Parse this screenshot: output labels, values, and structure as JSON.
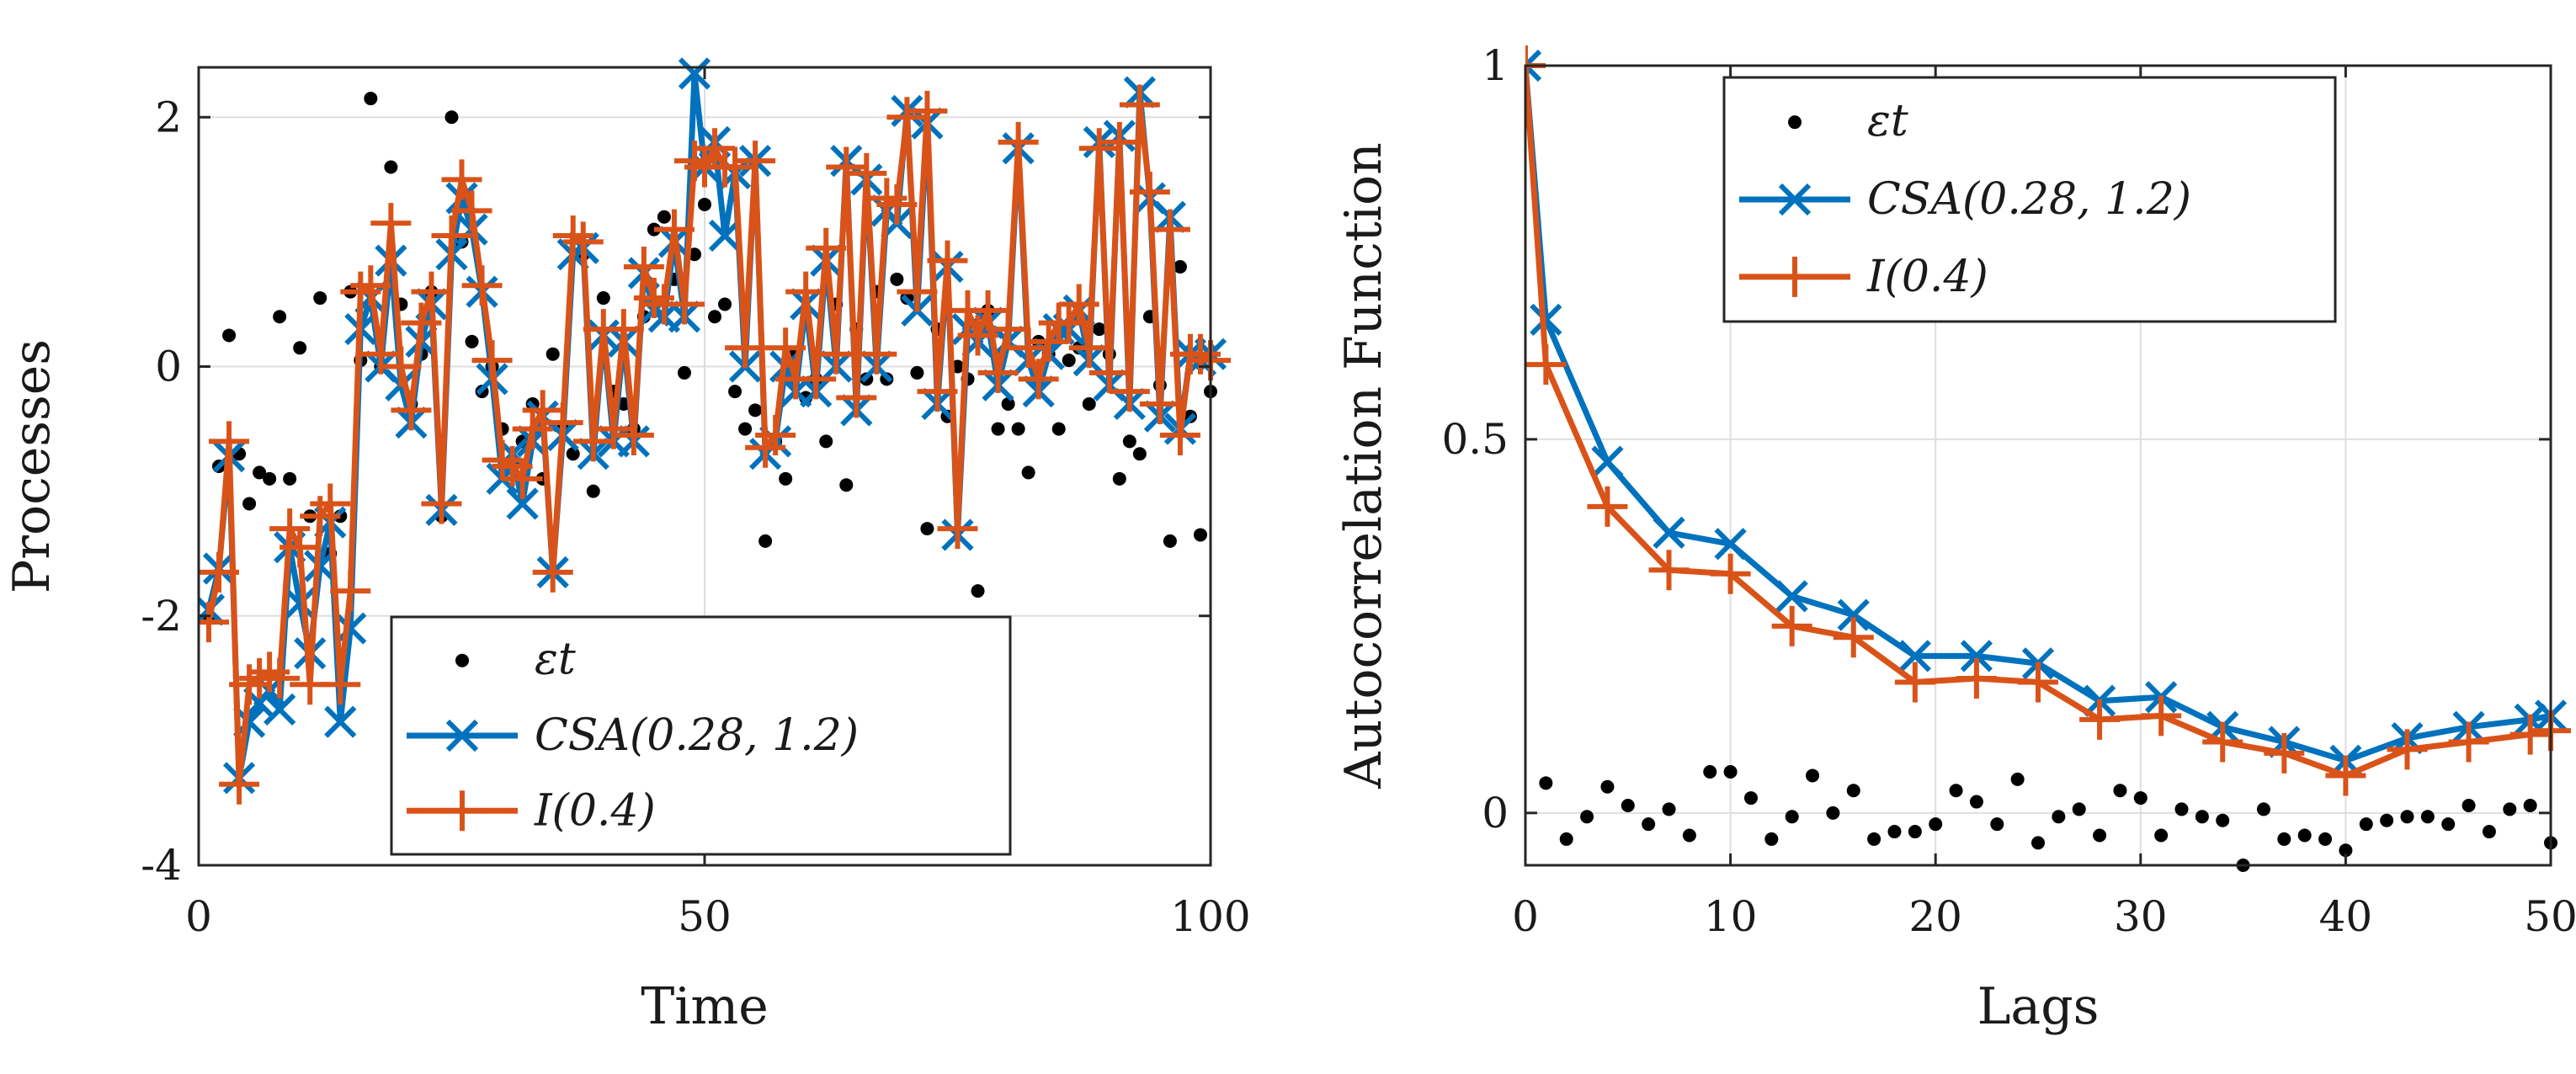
{
  "colors": {
    "csa": "#0072BD",
    "fi": "#D95319",
    "eps": "#000000",
    "axis": "#262626",
    "grid": "#dedede"
  },
  "legend": {
    "eps_label": "εt",
    "csa_label": "CSA(0.28, 1.2)",
    "fi_label": "I(0.4)"
  },
  "chart_data": [
    {
      "type": "line",
      "title": "",
      "xlabel": "Time",
      "ylabel": "Processes",
      "xlim": [
        0,
        100
      ],
      "ylim": [
        -4,
        2.4
      ],
      "xticks": [
        0,
        50,
        100
      ],
      "yticks": [
        -4,
        -2,
        0,
        2
      ],
      "xtick_labels": [
        "0",
        "50",
        "100"
      ],
      "ytick_labels": [
        "-4",
        "-2",
        "0",
        "2"
      ],
      "grid": true,
      "legend_position": "bottom-right",
      "x": [
        1,
        2,
        3,
        4,
        5,
        6,
        7,
        8,
        9,
        10,
        11,
        12,
        13,
        14,
        15,
        16,
        17,
        18,
        19,
        20,
        21,
        22,
        23,
        24,
        25,
        26,
        27,
        28,
        29,
        30,
        31,
        32,
        33,
        34,
        35,
        36,
        37,
        38,
        39,
        40,
        41,
        42,
        43,
        44,
        45,
        46,
        47,
        48,
        49,
        50,
        51,
        52,
        53,
        54,
        55,
        56,
        57,
        58,
        59,
        60,
        61,
        62,
        63,
        64,
        65,
        66,
        67,
        68,
        69,
        70,
        71,
        72,
        73,
        74,
        75,
        76,
        77,
        78,
        79,
        80,
        81,
        82,
        83,
        84,
        85,
        86,
        87,
        88,
        89,
        90,
        91,
        92,
        93,
        94,
        95,
        96,
        97,
        98,
        99,
        100
      ],
      "series": [
        {
          "name": "εt",
          "style": "points",
          "values": [
            -2.0,
            -0.8,
            0.25,
            -0.7,
            -1.1,
            -0.85,
            -0.9,
            0.4,
            -0.9,
            0.15,
            -1.2,
            0.55,
            -1.5,
            -1.2,
            0.6,
            0.05,
            2.15,
            0.0,
            1.6,
            0.5,
            -0.3,
            0.1,
            0.6,
            -1.2,
            2.0,
            1.0,
            0.2,
            -0.2,
            0.0,
            -0.5,
            -0.8,
            -0.6,
            -0.3,
            -0.9,
            0.1,
            -0.5,
            -0.7,
            0.9,
            -1.0,
            0.55,
            -0.2,
            -0.3,
            -0.5,
            0.4,
            1.1,
            1.2,
            0.7,
            -0.05,
            0.9,
            1.3,
            0.4,
            0.5,
            -0.2,
            -0.5,
            -0.35,
            -1.4,
            -0.6,
            -0.9,
            0.1,
            -0.25,
            -0.1,
            -0.6,
            0.5,
            -0.95,
            0.3,
            -0.1,
            0.6,
            -0.1,
            0.7,
            0.55,
            -0.05,
            -1.3,
            0.3,
            -0.4,
            0.0,
            -0.1,
            -1.8,
            0.45,
            -0.5,
            -0.3,
            -0.5,
            -0.85,
            0.2,
            0.1,
            -0.5,
            0.05,
            0.15,
            -0.3,
            0.3,
            0.1,
            -0.9,
            -0.6,
            -0.7,
            0.4,
            -0.15,
            -1.4,
            0.8,
            -0.4,
            -1.35,
            -0.2
          ]
        },
        {
          "name": "CSA(0.28, 1.2)",
          "style": "line-x",
          "values": [
            -1.95,
            -1.62,
            -0.72,
            -3.3,
            -2.85,
            -2.7,
            -2.6,
            -2.75,
            -1.45,
            -1.9,
            -2.3,
            -1.6,
            -1.25,
            -2.85,
            -2.1,
            0.3,
            0.55,
            -0.0,
            0.85,
            -0.15,
            -0.45,
            0.2,
            0.5,
            -1.15,
            0.9,
            1.35,
            1.1,
            0.6,
            -0.1,
            -0.9,
            -0.7,
            -1.1,
            -0.6,
            -0.4,
            -1.65,
            -0.55,
            0.9,
            0.95,
            -0.7,
            0.25,
            -0.6,
            0.2,
            -0.6,
            0.75,
            0.45,
            0.4,
            1.0,
            0.4,
            2.35,
            1.6,
            1.8,
            1.05,
            1.55,
            0.0,
            1.65,
            -0.7,
            -0.6,
            0.0,
            -0.2,
            0.5,
            -0.2,
            0.85,
            0.0,
            1.65,
            -0.35,
            1.5,
            0.0,
            1.25,
            1.15,
            2.05,
            0.45,
            1.95,
            -0.3,
            0.8,
            -1.35,
            0.3,
            0.2,
            0.35,
            -0.15,
            0.2,
            1.75,
            0.05,
            -0.2,
            0.1,
            0.3,
            0.3,
            0.45,
            0.05,
            1.8,
            -0.15,
            1.85,
            -0.3,
            2.2,
            1.35,
            -0.4,
            1.2,
            -0.5,
            0.1,
            0.05,
            0.1
          ]
        },
        {
          "name": "I(0.4)",
          "style": "line-plus",
          "values": [
            -2.05,
            -1.65,
            -0.6,
            -3.35,
            -2.55,
            -2.5,
            -2.45,
            -2.5,
            -1.3,
            -1.45,
            -2.55,
            -1.2,
            -1.1,
            -2.55,
            -1.8,
            0.6,
            0.65,
            0.1,
            1.15,
            0.0,
            -0.35,
            0.35,
            0.6,
            -1.1,
            1.05,
            1.5,
            1.25,
            0.65,
            0.05,
            -0.75,
            -0.8,
            -0.9,
            -0.5,
            -0.35,
            -1.65,
            -0.45,
            1.05,
            1.0,
            -0.6,
            0.3,
            -0.5,
            0.3,
            -0.55,
            0.8,
            0.55,
            0.5,
            1.1,
            0.5,
            1.65,
            1.6,
            1.75,
            1.6,
            1.6,
            0.15,
            1.65,
            -0.65,
            -0.55,
            0.15,
            -0.1,
            0.6,
            -0.1,
            0.95,
            0.1,
            1.6,
            -0.25,
            1.55,
            0.1,
            1.35,
            1.3,
            2.0,
            0.6,
            2.05,
            -0.2,
            0.85,
            -1.3,
            0.45,
            0.25,
            0.45,
            -0.05,
            0.3,
            1.8,
            0.15,
            -0.1,
            0.2,
            0.35,
            0.35,
            0.5,
            0.15,
            1.75,
            -0.05,
            1.8,
            -0.2,
            2.1,
            1.4,
            -0.3,
            1.1,
            -0.55,
            0.1,
            0.1,
            0.05
          ]
        }
      ]
    },
    {
      "type": "line",
      "title": "",
      "xlabel": "Lags",
      "ylabel": "Autocorrelation Function",
      "xlim": [
        0,
        50
      ],
      "ylim": [
        -0.07,
        1.0
      ],
      "xticks": [
        0,
        10,
        20,
        30,
        40,
        50
      ],
      "yticks": [
        0,
        0.5,
        1
      ],
      "xtick_labels": [
        "0",
        "10",
        "20",
        "30",
        "40",
        "50"
      ],
      "ytick_labels": [
        "0",
        "0.5",
        "1"
      ],
      "grid": true,
      "legend_position": "top",
      "x": [
        0,
        1,
        2,
        3,
        4,
        5,
        6,
        7,
        8,
        9,
        10,
        11,
        12,
        13,
        14,
        15,
        16,
        17,
        18,
        19,
        20,
        21,
        22,
        23,
        24,
        25,
        26,
        27,
        28,
        29,
        30,
        31,
        32,
        33,
        34,
        35,
        36,
        37,
        38,
        39,
        40,
        41,
        42,
        43,
        44,
        45,
        46,
        47,
        48,
        49,
        50
      ],
      "series": [
        {
          "name": "εt",
          "style": "points",
          "values": [
            1.0,
            0.04,
            -0.035,
            -0.005,
            0.035,
            0.01,
            -0.015,
            0.005,
            -0.03,
            0.055,
            0.055,
            0.02,
            -0.035,
            -0.005,
            0.05,
            0.0,
            0.03,
            -0.035,
            -0.025,
            -0.025,
            -0.015,
            0.03,
            0.015,
            -0.015,
            0.045,
            -0.04,
            -0.005,
            0.005,
            -0.03,
            0.03,
            0.02,
            -0.03,
            0.005,
            -0.005,
            -0.01,
            -0.07,
            0.005,
            -0.035,
            -0.03,
            -0.035,
            -0.05,
            -0.015,
            -0.01,
            -0.005,
            -0.005,
            -0.015,
            0.01,
            -0.025,
            0.005,
            0.01,
            -0.04
          ]
        },
        {
          "name": "CSA(0.28, 1.2)",
          "style": "line-x",
          "x": [
            0,
            1,
            4,
            7,
            10,
            13,
            16,
            19,
            22,
            25,
            28,
            31,
            34,
            37,
            40,
            43,
            46,
            49,
            50
          ],
          "values": [
            1.0,
            0.66,
            0.47,
            0.375,
            0.36,
            0.29,
            0.265,
            0.21,
            0.21,
            0.2,
            0.15,
            0.155,
            0.115,
            0.095,
            0.07,
            0.1,
            0.115,
            0.125,
            0.13
          ]
        },
        {
          "name": "I(0.4)",
          "style": "line-plus",
          "x": [
            0,
            1,
            4,
            7,
            10,
            13,
            16,
            19,
            22,
            25,
            28,
            31,
            34,
            37,
            40,
            43,
            46,
            49,
            50
          ],
          "values": [
            1.0,
            0.6,
            0.41,
            0.325,
            0.32,
            0.25,
            0.235,
            0.175,
            0.18,
            0.175,
            0.125,
            0.13,
            0.095,
            0.08,
            0.05,
            0.085,
            0.095,
            0.105,
            0.11
          ]
        }
      ]
    }
  ]
}
